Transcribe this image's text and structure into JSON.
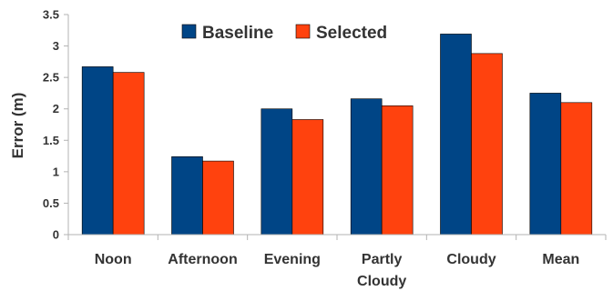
{
  "chart_data": {
    "type": "bar",
    "categories": [
      [
        "Noon"
      ],
      [
        "Afternoon"
      ],
      [
        "Evening"
      ],
      [
        "Partly",
        "Cloudy"
      ],
      [
        "Cloudy"
      ],
      [
        "Mean"
      ]
    ],
    "series": [
      {
        "name": "Baseline",
        "color": "#004586",
        "values": [
          2.67,
          1.24,
          2.0,
          2.16,
          3.19,
          2.25
        ]
      },
      {
        "name": "Selected",
        "color": "#FF420E",
        "values": [
          2.58,
          1.17,
          1.83,
          2.05,
          2.88,
          2.1
        ]
      }
    ],
    "title": "",
    "xlabel": "",
    "ylabel": "Error (m)",
    "ylim": [
      0,
      3.5
    ],
    "yticks": [
      "0",
      "0.5",
      "1",
      "1.5",
      "2",
      "2.5",
      "3",
      "3.5"
    ],
    "grid": false,
    "legend": "top-center"
  }
}
